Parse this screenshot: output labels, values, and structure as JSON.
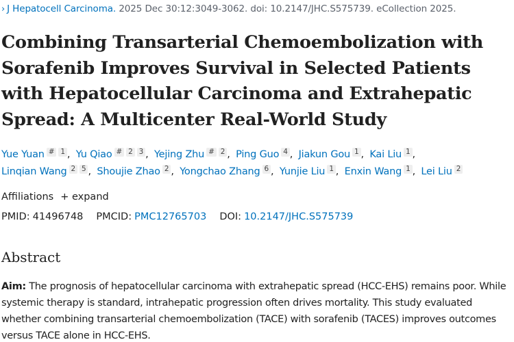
{
  "citation": {
    "chevron": "›",
    "journal": "J Hepatocell Carcinoma.",
    "details": " 2025 Dec 30:12:3049-3062. doi: 10.2147/JHC.S575739. eCollection 2025."
  },
  "title_lines": [
    "Combining Transarterial Chemoembolization with",
    "Sorafenib Improves Survival in Selected Patients",
    "with Hepatocellular Carcinoma and Extrahepatic",
    "Spread: A Multicenter Real-World Study"
  ],
  "authors": [
    {
      "name": "Yue Yuan",
      "sups": [
        "#",
        "1"
      ]
    },
    {
      "name": "Yu Qiao",
      "sups": [
        "#",
        "2",
        "3"
      ]
    },
    {
      "name": "Yejing Zhu",
      "sups": [
        "#",
        "2"
      ]
    },
    {
      "name": "Ping Guo",
      "sups": [
        "4"
      ]
    },
    {
      "name": "Jiakun Gou",
      "sups": [
        "1"
      ]
    },
    {
      "name": "Kai Liu",
      "sups": [
        "1"
      ]
    },
    {
      "name": "Linqian Wang",
      "sups": [
        "2",
        "5"
      ]
    },
    {
      "name": "Shoujie Zhao",
      "sups": [
        "2"
      ]
    },
    {
      "name": "Yongchao Zhang",
      "sups": [
        "6"
      ]
    },
    {
      "name": "Yunjie Liu",
      "sups": [
        "1"
      ]
    },
    {
      "name": "Enxin Wang",
      "sups": [
        "1"
      ]
    },
    {
      "name": "Lei Liu",
      "sups": [
        "2"
      ]
    }
  ],
  "affiliations": {
    "label": "Affiliations",
    "expand_label": "+ expand"
  },
  "ids": {
    "pmid_label": "PMID:",
    "pmid": "41496748",
    "pmcid_label": "PMCID:",
    "pmcid": "PMC12765703",
    "doi_label": "DOI:",
    "doi": "10.2147/JHC.S575739"
  },
  "abstract": {
    "heading": "Abstract",
    "aim_label": "Aim:",
    "aim_text": " The prognosis of hepatocellular carcinoma with extrahepatic spread (HCC-EHS) remains poor. While systemic therapy is standard, intrahepatic progression often drives mortality. This study evaluated whether combining transarterial chemoembolization (TACE) with sorafenib (TACES) improves outcomes versus TACE alone in HCC-EHS."
  }
}
